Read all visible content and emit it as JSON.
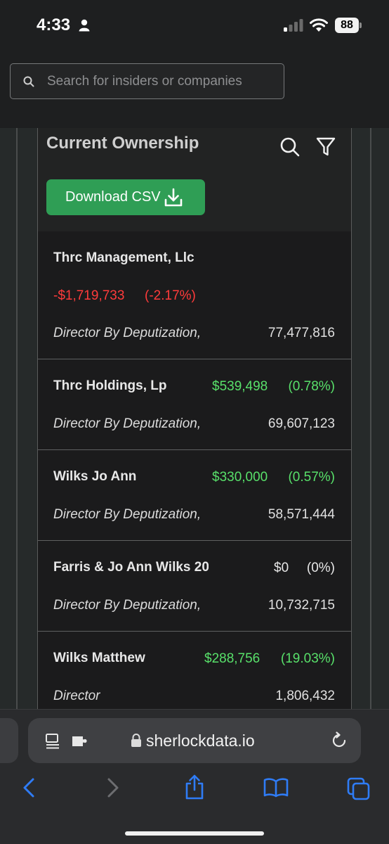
{
  "status_bar": {
    "time": "4:33",
    "battery": "88",
    "icons": [
      "person-icon",
      "cellular-signal-icon",
      "wifi-icon",
      "battery-icon"
    ]
  },
  "search": {
    "placeholder": "Search for insiders or companies",
    "icon": "search-icon"
  },
  "panel": {
    "title": "Current Ownership",
    "tools": [
      "search-icon",
      "filter-icon"
    ],
    "download_label": "Download CSV",
    "download_icon": "download-icon"
  },
  "holders": [
    {
      "name": "Thrc Management, Llc",
      "value": "-$1,719,733",
      "percent": "(-2.17%)",
      "role": "Director By Deputization,",
      "shares": "77,477,816",
      "trend": "negative"
    },
    {
      "name": "Thrc Holdings, Lp",
      "value": "$539,498",
      "percent": "(0.78%)",
      "role": "Director By Deputization,",
      "shares": "69,607,123",
      "trend": "positive"
    },
    {
      "name": "Wilks Jo Ann",
      "value": "$330,000",
      "percent": "(0.57%)",
      "role": "Director By Deputization,",
      "shares": "58,571,444",
      "trend": "positive"
    },
    {
      "name": "Farris & Jo Ann Wilks 20",
      "value": "$0",
      "percent": "(0%)",
      "role": "Director By Deputization,",
      "shares": "10,732,715",
      "trend": "neutral"
    },
    {
      "name": "Wilks Matthew",
      "value": "$288,756",
      "percent": "(19.03%)",
      "role": "Director",
      "shares": "1,806,432",
      "trend": "positive"
    }
  ],
  "browser": {
    "url": "sherlockdata.io",
    "icons": [
      "reader-icon",
      "extension-icon",
      "lock-icon",
      "reload-icon",
      "back-icon",
      "forward-icon",
      "share-icon",
      "bookmarks-icon",
      "tabs-icon"
    ]
  },
  "colors": {
    "negative": "#ff3b3b",
    "positive": "#58e06a",
    "accent_button": "#2f9e55",
    "ios_blue": "#2f7cf6"
  }
}
